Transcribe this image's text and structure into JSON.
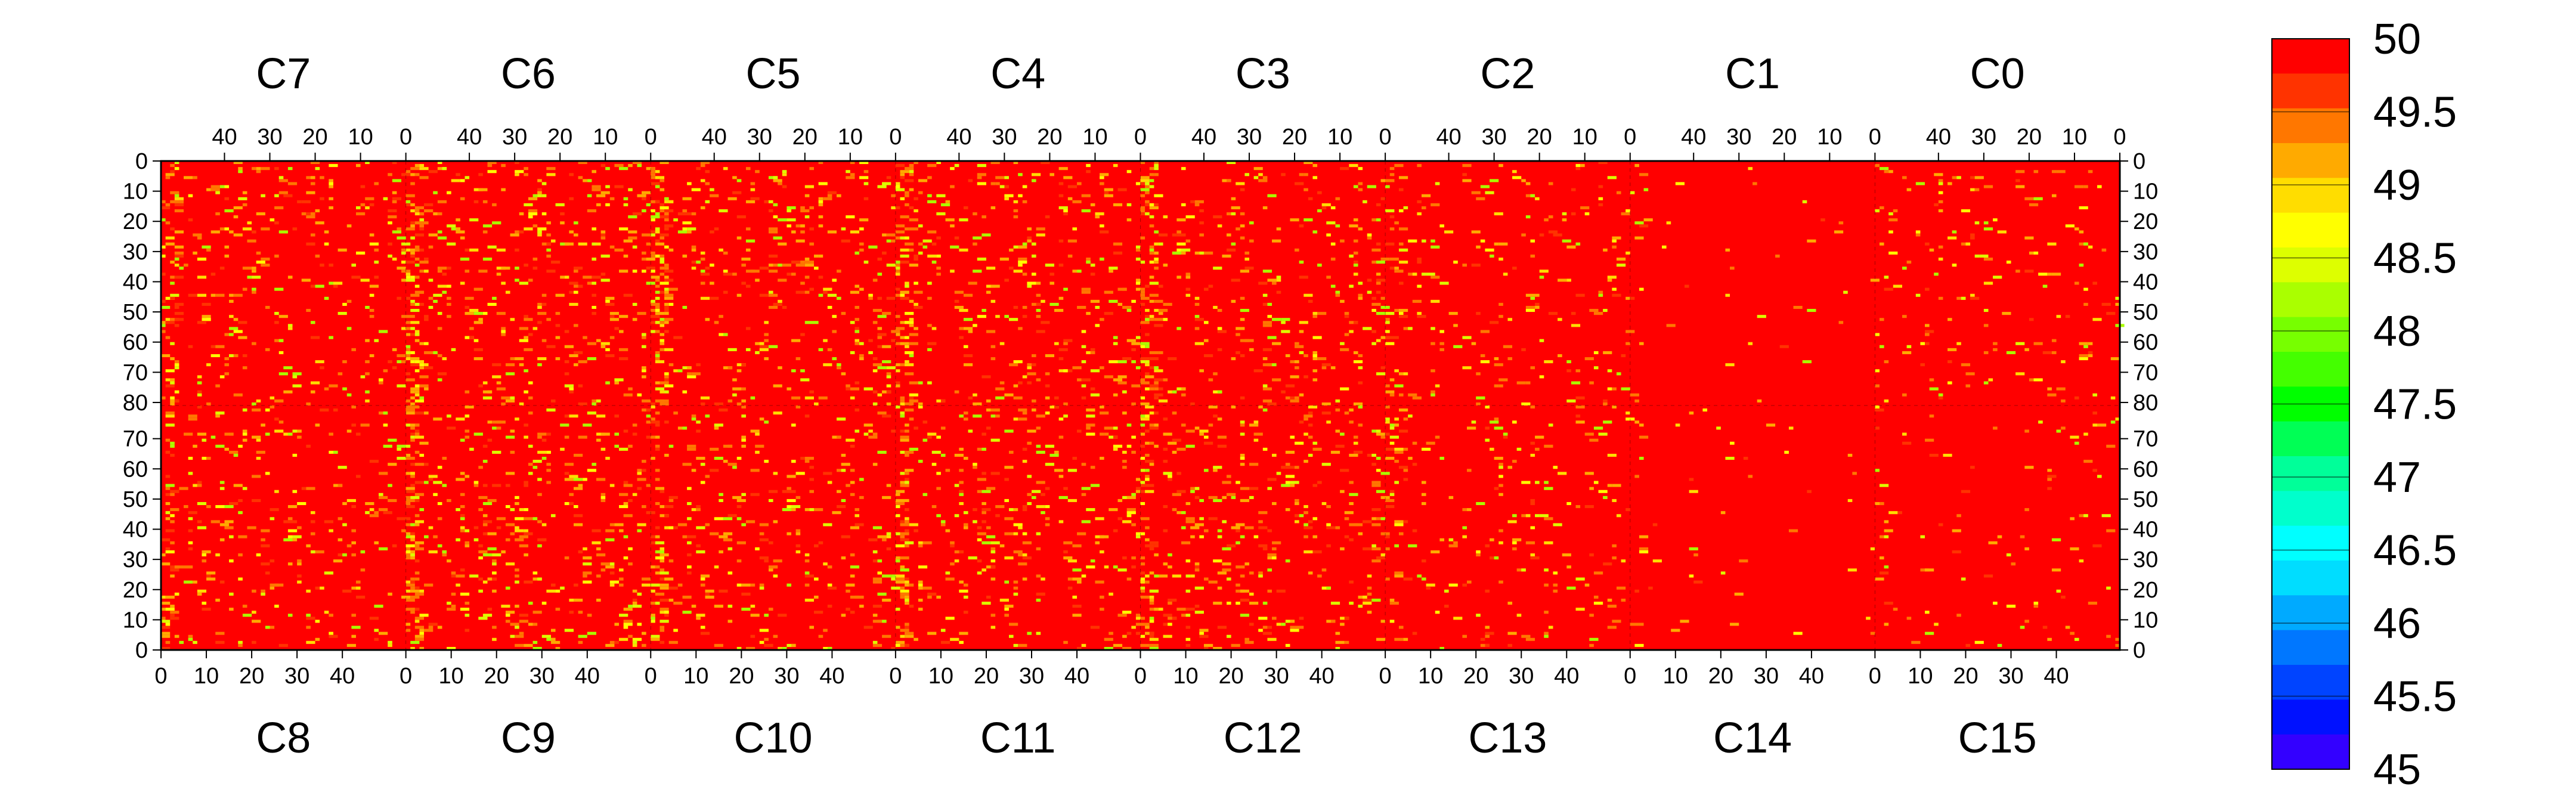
{
  "chart_data": {
    "type": "heatmap",
    "title": "",
    "xlabel": "",
    "ylabel": "",
    "top_panel_labels": [
      "C7",
      "C6",
      "C5",
      "C4",
      "C3",
      "C2",
      "C1",
      "C0"
    ],
    "bottom_panel_labels": [
      "C8",
      "C9",
      "C10",
      "C11",
      "C12",
      "C13",
      "C14",
      "C15"
    ],
    "panel_columns": 54,
    "top_x_ticks": [
      "40",
      "30",
      "20",
      "10",
      "0"
    ],
    "bottom_x_ticks": [
      "0",
      "10",
      "20",
      "30",
      "40"
    ],
    "top_y_ticks": [
      "0",
      "10",
      "20",
      "30",
      "40",
      "50",
      "60",
      "70",
      "80"
    ],
    "bottom_y_ticks": [
      "70",
      "60",
      "50",
      "40",
      "30",
      "20",
      "10",
      "0"
    ],
    "rows_per_half": 81,
    "color_scale": {
      "min": 45,
      "max": 50,
      "step": 0.25,
      "tick_labels": [
        "50",
        "49.5",
        "49",
        "48.5",
        "48",
        "47.5",
        "47",
        "46.5",
        "46",
        "45.5",
        "45"
      ],
      "band_colors": [
        "#ff0000",
        "#ff3300",
        "#ff7700",
        "#ffaa00",
        "#ffdd00",
        "#ffff00",
        "#ddff00",
        "#aaff00",
        "#77ff00",
        "#44ff00",
        "#00ff00",
        "#00ff55",
        "#00ff99",
        "#00ffcc",
        "#00ffff",
        "#00ddff",
        "#00aaff",
        "#0077ff",
        "#0044ff",
        "#0011ff",
        "#3300ff"
      ]
    },
    "base_value": 50,
    "off_value_density_by_panel": {
      "C7": 0.06,
      "C6": 0.08,
      "C5": 0.08,
      "C4": 0.07,
      "C3": 0.07,
      "C2": 0.04,
      "C1": 0.01,
      "C0": 0.03,
      "C8": 0.06,
      "C9": 0.08,
      "C10": 0.07,
      "C11": 0.07,
      "C12": 0.08,
      "C13": 0.04,
      "C14": 0.01,
      "C15": 0.02
    }
  }
}
